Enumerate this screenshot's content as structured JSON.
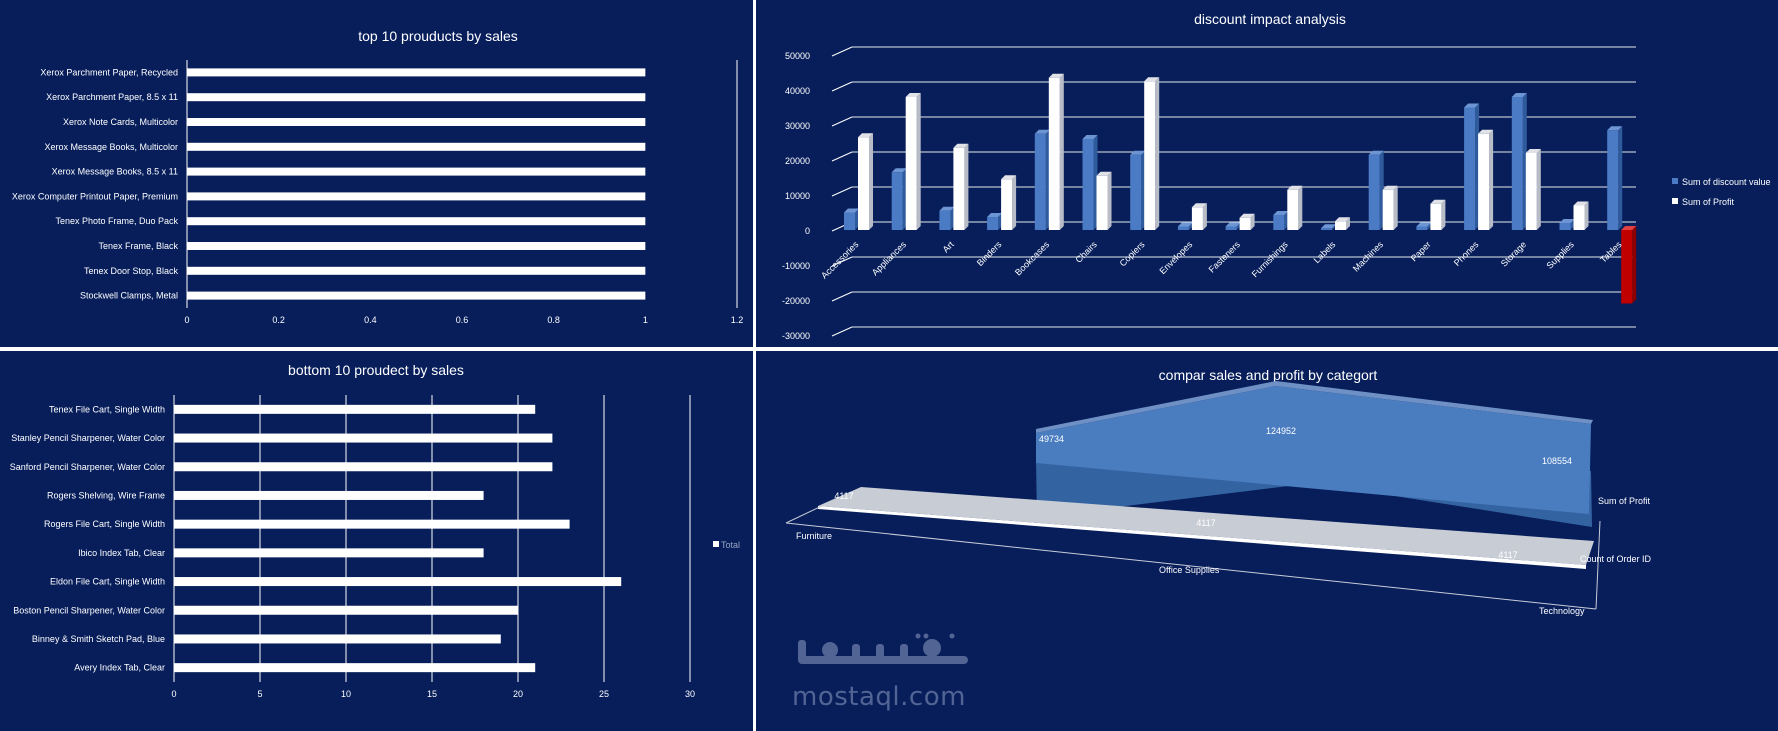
{
  "charts": [
    {
      "type": "bar",
      "title": "top 10 prouducts by sales",
      "categories": [
        "Xerox Parchment Paper, Recycled",
        "Xerox Parchment Paper, 8.5 x 11",
        "Xerox Note Cards, Multicolor",
        "Xerox Message Books, Multicolor",
        "Xerox Message Books, 8.5 x 11",
        "Xerox Computer Printout Paper, Premium",
        "Tenex Photo Frame, Duo Pack",
        "Tenex Frame, Black",
        "Tenex Door Stop, Black",
        "Stockwell Clamps, Metal"
      ],
      "values": [
        1,
        1,
        1,
        1,
        1,
        1,
        1,
        1,
        1,
        1
      ],
      "xlim": [
        0,
        1.2
      ],
      "xticks": [
        "0",
        "0.2",
        "0.4",
        "0.6",
        "0.8",
        "1",
        "1.2"
      ]
    },
    {
      "type": "bar",
      "title": "discount impact analysis",
      "categories": [
        "Accessories",
        "Appliances",
        "Art",
        "Binders",
        "Bookcases",
        "Chairs",
        "Copiers",
        "Envelopes",
        "Fasteners",
        "Furnishings",
        "Labels",
        "Machines",
        "Paper",
        "Phones",
        "Storage",
        "Supplies",
        "Tables"
      ],
      "series": [
        {
          "name": "Sum of discount value",
          "values": [
            5000,
            16500,
            5500,
            3700,
            27500,
            26000,
            21500,
            1000,
            1000,
            4300,
            500,
            21500,
            1000,
            35000,
            38000,
            2000,
            28500
          ]
        },
        {
          "name": "Sum of Profit",
          "values": [
            26500,
            38000,
            23500,
            14500,
            43500,
            15500,
            42500,
            6500,
            3500,
            11500,
            2500,
            11500,
            7500,
            27500,
            22000,
            7000,
            -21000
          ]
        }
      ],
      "ylim": [
        -30000,
        50000
      ],
      "yticks": [
        "50000",
        "40000",
        "30000",
        "20000",
        "10000",
        "0",
        "-10000",
        "-20000",
        "-30000"
      ],
      "legend": "right"
    },
    {
      "type": "bar",
      "title": "bottom 10 proudect by sales",
      "categories": [
        "Tenex File Cart, Single Width",
        "Stanley Pencil Sharpener, Water Color",
        "Sanford Pencil Sharpener, Water Color",
        "Rogers Shelving, Wire Frame",
        "Rogers File Cart, Single Width",
        "Ibico Index Tab, Clear",
        "Eldon File Cart, Single Width",
        "Boston Pencil Sharpener, Water Color",
        "Binney & Smith Sketch Pad, Blue",
        "Avery Index Tab, Clear"
      ],
      "series": [
        {
          "name": "Total",
          "values": [
            21,
            22,
            22,
            18,
            23,
            18,
            26,
            20,
            19,
            21
          ]
        }
      ],
      "xlim": [
        0,
        30
      ],
      "xticks": [
        "0",
        "5",
        "10",
        "15",
        "20",
        "25",
        "30"
      ],
      "legend": "right"
    },
    {
      "type": "area",
      "title": "compar sales and profit by categort",
      "categories": [
        "Furniture",
        "Office Supplies",
        "Technology"
      ],
      "series": [
        {
          "name": "Sum of Profit",
          "values": [
            49734,
            124952,
            108554
          ]
        },
        {
          "name": "Count of Order ID",
          "values": [
            4117,
            4117,
            4117
          ]
        }
      ],
      "labels_profit": [
        "49734",
        "124952",
        "108554"
      ],
      "labels_count": [
        "4117",
        "4117",
        "4117"
      ]
    }
  ],
  "watermark": {
    "latin": "mostaql.com"
  },
  "colors": {
    "background": "#071e5b",
    "bar_white": "#ffffff",
    "bar_blue": "#4a7bc4",
    "negative": "#c00000",
    "area_blue": "#4a7cc0",
    "area_gray": "#c0c4cc"
  }
}
